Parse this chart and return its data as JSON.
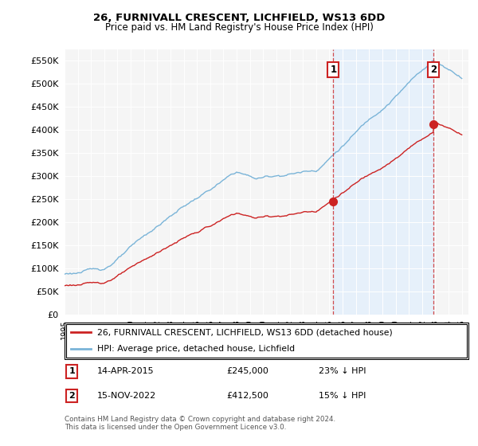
{
  "title": "26, FURNIVALL CRESCENT, LICHFIELD, WS13 6DD",
  "subtitle": "Price paid vs. HM Land Registry's House Price Index (HPI)",
  "ylim": [
    0,
    575000
  ],
  "yticks": [
    0,
    50000,
    100000,
    150000,
    200000,
    250000,
    300000,
    350000,
    400000,
    450000,
    500000,
    550000
  ],
  "hpi_color": "#7ab4d8",
  "price_color": "#cc2222",
  "shade_color": "#ddeeff",
  "sale1_date": 2015.29,
  "sale1_price": 245000,
  "sale2_date": 2022.88,
  "sale2_price": 412500,
  "legend_text_1": "26, FURNIVALL CRESCENT, LICHFIELD, WS13 6DD (detached house)",
  "legend_text_2": "HPI: Average price, detached house, Lichfield",
  "footnote": "Contains HM Land Registry data © Crown copyright and database right 2024.\nThis data is licensed under the Open Government Licence v3.0.",
  "plot_bg_color": "#f5f5f5"
}
